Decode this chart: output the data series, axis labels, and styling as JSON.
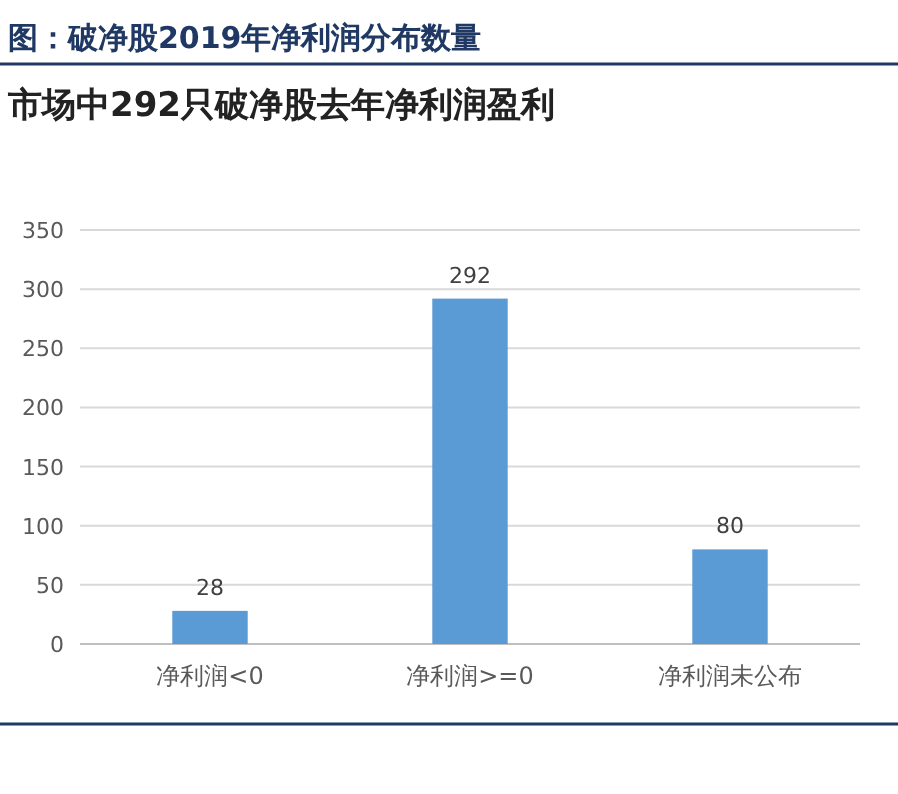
{
  "chart_data": {
    "type": "bar",
    "title": "图：破净股2019年净利润分布数量",
    "subtitle": "市场中292只破净股去年净利润盈利",
    "categories": [
      "净利润<0",
      "净利润>=0",
      "净利润未公布"
    ],
    "values": [
      28,
      292,
      80
    ],
    "color": "#5b9bd5",
    "ylim": [
      0,
      350
    ],
    "yticks": [
      0,
      50,
      100,
      150,
      200,
      250,
      300,
      350
    ],
    "grid": "y",
    "data_labels": true
  }
}
